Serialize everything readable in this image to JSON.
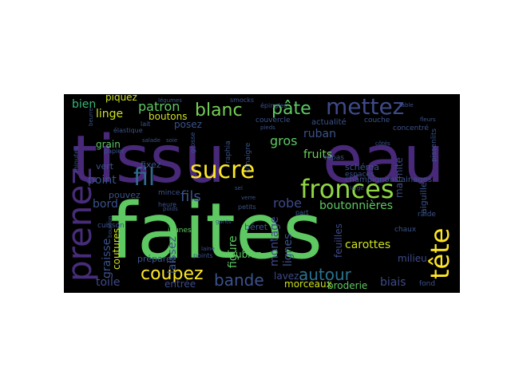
{
  "wordcloud": {
    "words": [
      {
        "text": "faites",
        "color": "#5ec962"
      },
      {
        "text": "tissu",
        "color": "#482878"
      },
      {
        "text": "eau",
        "color": "#482878"
      },
      {
        "text": "prenez",
        "color": "#472c7a"
      },
      {
        "text": "sucre",
        "color": "#fde725"
      },
      {
        "text": "mettez",
        "color": "#3e4a89"
      },
      {
        "text": "fronces",
        "color": "#8fd744"
      },
      {
        "text": "tête",
        "color": "#fde725"
      },
      {
        "text": "fil",
        "color": "#31688e"
      },
      {
        "text": "blanc",
        "color": "#74d055"
      },
      {
        "text": "pâte",
        "color": "#5ec962"
      },
      {
        "text": "coupez",
        "color": "#fde725"
      },
      {
        "text": "autour",
        "color": "#2c728e"
      },
      {
        "text": "bande",
        "color": "#3b528b"
      },
      {
        "text": "fils",
        "color": "#3b528b"
      },
      {
        "text": "patron",
        "color": "#5ec962"
      },
      {
        "text": "gros",
        "color": "#5ec962"
      },
      {
        "text": "robe",
        "color": "#3e4a89"
      },
      {
        "text": "linge",
        "color": "#cde11d"
      },
      {
        "text": "bien",
        "color": "#35b779"
      },
      {
        "text": "point",
        "color": "#3b528b"
      },
      {
        "text": "bord",
        "color": "#3b528b"
      },
      {
        "text": "ruban",
        "color": "#3b528b"
      },
      {
        "text": "fruits",
        "color": "#6ece58"
      },
      {
        "text": "boutonnières",
        "color": "#5ec962"
      },
      {
        "text": "carottes",
        "color": "#cde11d"
      },
      {
        "text": "montage",
        "color": "#3e4a89"
      },
      {
        "text": "lignes",
        "color": "#3b528b"
      },
      {
        "text": "figure",
        "color": "#5ec962"
      },
      {
        "text": "laissez",
        "color": "#3b528b"
      },
      {
        "text": "graisse",
        "color": "#3b528b"
      },
      {
        "text": "toile",
        "color": "#3e4a89"
      },
      {
        "text": "biais",
        "color": "#3e4a89"
      },
      {
        "text": "feuilles",
        "color": "#3e4a89"
      },
      {
        "text": "doublez",
        "color": "#5ec962"
      },
      {
        "text": "lavez",
        "color": "#3e4a89"
      },
      {
        "text": "morceaux",
        "color": "#cde11d"
      },
      {
        "text": "coutures",
        "color": "#cde11d"
      },
      {
        "text": "boutons",
        "color": "#cde11d"
      },
      {
        "text": "grain",
        "color": "#5ec962"
      },
      {
        "text": "posez",
        "color": "#3b528b"
      },
      {
        "text": "piquez",
        "color": "#cde11d"
      },
      {
        "text": "marmite",
        "color": "#3e4a89"
      },
      {
        "text": "milieu",
        "color": "#3e4a89"
      },
      {
        "text": "entrée",
        "color": "#3e4a89"
      },
      {
        "text": "broderie",
        "color": "#5ec962"
      },
      {
        "text": "schéma",
        "color": "#3b528b"
      },
      {
        "text": "vert",
        "color": "#3b528b"
      },
      {
        "text": "fixez",
        "color": "#3b528b"
      },
      {
        "text": "pouvez",
        "color": "#3b528b"
      },
      {
        "text": "préparez",
        "color": "#3b528b"
      },
      {
        "text": "béret",
        "color": "#3b528b"
      },
      {
        "text": "actualité",
        "color": "#3b528b"
      },
      {
        "text": "couvercle",
        "color": "#3b528b"
      },
      {
        "text": "repas",
        "color": "#3b528b"
      },
      {
        "text": "jeunes",
        "color": "#5ec962"
      },
      {
        "text": "petits",
        "color": "#3b528b"
      },
      {
        "text": "points",
        "color": "#3b528b"
      },
      {
        "text": "cuisson",
        "color": "#3b528b"
      },
      {
        "text": "mince",
        "color": "#3b528b"
      },
      {
        "text": "chaux",
        "color": "#3b528b"
      },
      {
        "text": "raide",
        "color": "#3b528b"
      },
      {
        "text": "fond",
        "color": "#3b528b"
      },
      {
        "text": "aiguille",
        "color": "#3b528b"
      },
      {
        "text": "champignonslainages",
        "color": "#3b528b"
      },
      {
        "text": "épingles",
        "color": "#3b528b"
      },
      {
        "text": "couche",
        "color": "#3b528b"
      },
      {
        "text": "lait",
        "color": "#3b528b"
      },
      {
        "text": "élastique",
        "color": "#3b528b"
      },
      {
        "text": "papier",
        "color": "#3b528b"
      },
      {
        "text": "heure",
        "color": "#3b528b"
      },
      {
        "text": "part",
        "color": "#3b528b"
      },
      {
        "text": "concentré",
        "color": "#3b528b"
      },
      {
        "text": "pissenlits",
        "color": "#3b528b"
      },
      {
        "text": "raphia",
        "color": "#3b528b"
      },
      {
        "text": "vinaigre",
        "color": "#3b528b"
      },
      {
        "text": "espaces",
        "color": "#3b528b"
      },
      {
        "text": "large",
        "color": "#3b528b"
      },
      {
        "text": "smocks",
        "color": "#3b528b"
      },
      {
        "text": "salade",
        "color": "#3b528b"
      },
      {
        "text": "minutes",
        "color": "#3b528b"
      },
      {
        "text": "légumes",
        "color": "#3b528b"
      },
      {
        "text": "grosse",
        "color": "#3b528b"
      },
      {
        "text": "soie",
        "color": "#3b528b"
      },
      {
        "text": "beurre",
        "color": "#3b528b"
      },
      {
        "text": "poids",
        "color": "#3b528b"
      },
      {
        "text": "côtés",
        "color": "#3b528b"
      },
      {
        "text": "pieds",
        "color": "#3b528b"
      },
      {
        "text": "sel",
        "color": "#3b528b"
      },
      {
        "text": "verre",
        "color": "#3b528b"
      },
      {
        "text": "laine",
        "color": "#3b528b"
      },
      {
        "text": "fleurs",
        "color": "#3b528b"
      },
      {
        "text": "table",
        "color": "#3b528b"
      },
      {
        "text": "bouillon",
        "color": "#3b528b"
      },
      {
        "text": "gants",
        "color": "#3b528b"
      }
    ]
  }
}
